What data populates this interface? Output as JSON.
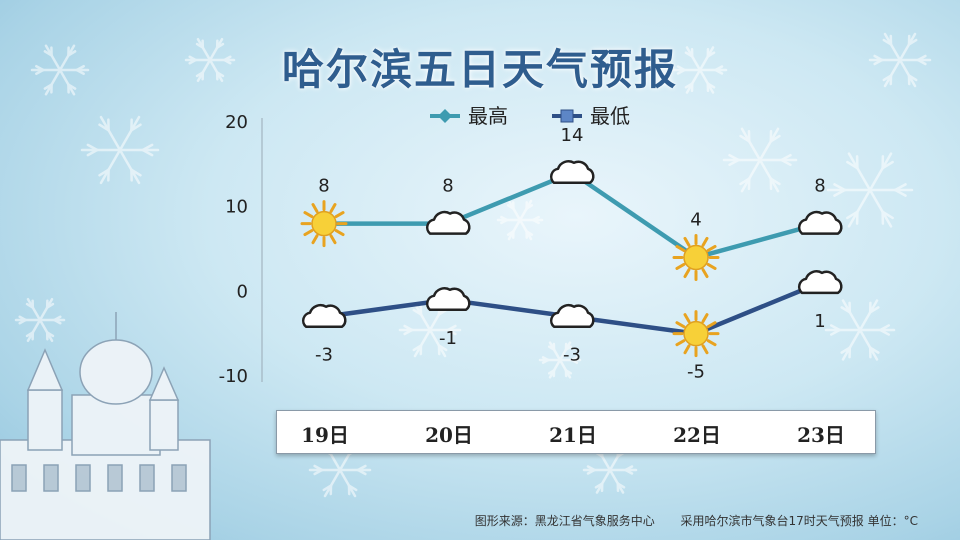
{
  "title": "哈尔滨五日天气预报",
  "footer": {
    "source": "图形来源：黑龙江省气象服务中心",
    "note": "采用哈尔滨市气象台17时天气预报 单位：°C"
  },
  "chart_data": {
    "type": "line",
    "categories": [
      "19日",
      "20日",
      "21日",
      "22日",
      "23日"
    ],
    "ylim": [
      -10,
      20
    ],
    "yticks": [
      20,
      10,
      0,
      -10
    ],
    "legend_position": "top",
    "series": [
      {
        "name": "最高",
        "values": [
          8,
          8,
          14,
          4,
          8
        ],
        "color": "#3e9bb0",
        "icons": [
          "sun-icon",
          "cloud-icon",
          "cloud-icon",
          "sun-icon",
          "cloud-icon"
        ]
      },
      {
        "name": "最低",
        "values": [
          -3,
          -1,
          -3,
          -5,
          1
        ],
        "color": "#2e4f86",
        "icons": [
          "cloud-icon",
          "cloud-icon",
          "cloud-icon",
          "sun-icon",
          "cloud-icon"
        ]
      }
    ]
  }
}
